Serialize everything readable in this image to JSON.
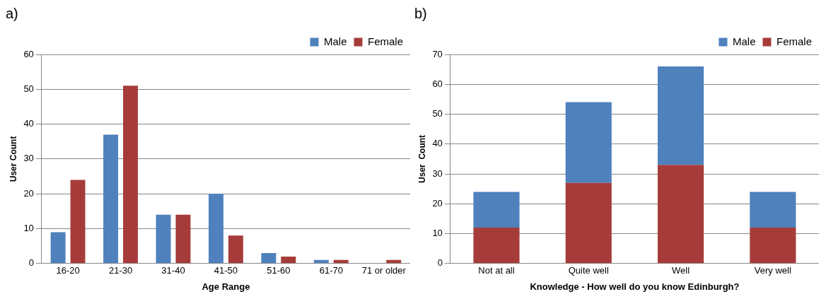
{
  "chart_data": [
    {
      "type": "bar",
      "title": "a)",
      "xlabel": "Age Range",
      "ylabel": "User Count",
      "categories": [
        "16-20",
        "21-30",
        "31-40",
        "41-50",
        "51-60",
        "61-70",
        "71 or older"
      ],
      "series": [
        {
          "name": "Male",
          "color": "#4f81bd",
          "values": [
            9,
            37,
            14,
            20,
            3,
            1,
            0
          ]
        },
        {
          "name": "Female",
          "color": "#a63c3a",
          "values": [
            24,
            51,
            14,
            8,
            2,
            1,
            1
          ]
        }
      ],
      "ylim": [
        0,
        60
      ],
      "yticks": [
        0,
        10,
        20,
        30,
        40,
        50,
        60
      ],
      "grid": "y",
      "legend": "top right"
    },
    {
      "type": "bar",
      "title": "b)",
      "xlabel": "Knowledge - How well do you know Edinburgh?",
      "ylabel": "User  Count",
      "categories": [
        "Not at all",
        "Quite well",
        "Well",
        "Very well"
      ],
      "stacked": true,
      "series": [
        {
          "name": "Female",
          "color": "#a63c3a",
          "values": [
            12,
            27,
            33,
            12
          ]
        },
        {
          "name": "Male",
          "color": "#4f81bd",
          "values": [
            12,
            27,
            33,
            12
          ]
        }
      ],
      "ylim": [
        0,
        70
      ],
      "yticks": [
        0,
        10,
        20,
        30,
        40,
        50,
        60,
        70
      ],
      "grid": "y",
      "legend": "top right"
    }
  ]
}
